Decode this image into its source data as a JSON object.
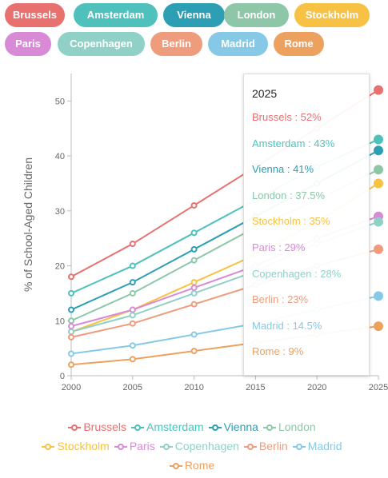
{
  "chart_data": {
    "type": "line",
    "title": "",
    "xlabel": "",
    "ylabel": "% of School-Aged Children",
    "x": [
      2000,
      2005,
      2010,
      2015,
      2020,
      2025
    ],
    "x_ticks": [
      "2000",
      "2005",
      "2010",
      "2015",
      "2020",
      "2025"
    ],
    "y_ticks": [
      "0",
      "10",
      "20",
      "30",
      "40",
      "50"
    ],
    "xlim": [
      2000,
      2025
    ],
    "ylim": [
      0,
      55
    ],
    "grid": false,
    "legend": "bottom",
    "series": [
      {
        "name": "Brussels",
        "color": "#e8706f",
        "values": [
          18,
          24,
          31,
          38,
          45,
          52
        ]
      },
      {
        "name": "Amsterdam",
        "color": "#4fc1bd",
        "values": [
          15,
          20,
          26,
          32,
          38,
          43
        ]
      },
      {
        "name": "Vienna",
        "color": "#2c9fb5",
        "values": [
          12,
          17,
          23,
          29,
          35,
          41
        ]
      },
      {
        "name": "London",
        "color": "#8dc7a8",
        "values": [
          10,
          15,
          21,
          27,
          32,
          37.5
        ]
      },
      {
        "name": "Stockholm",
        "color": "#f7c243",
        "values": [
          8,
          12,
          17,
          22,
          28,
          35
        ]
      },
      {
        "name": "Paris",
        "color": "#d88ad6",
        "values": [
          9,
          12,
          16,
          20,
          25,
          29
        ]
      },
      {
        "name": "Copenhagen",
        "color": "#8fd1c6",
        "values": [
          8,
          11,
          15,
          19,
          24,
          28
        ]
      },
      {
        "name": "Berlin",
        "color": "#ee9c7c",
        "values": [
          7,
          9.5,
          13,
          16.5,
          20,
          23
        ]
      },
      {
        "name": "Madrid",
        "color": "#86c9e6",
        "values": [
          4,
          5.5,
          7.5,
          9.5,
          12,
          14.5
        ]
      },
      {
        "name": "Rome",
        "color": "#eda15e",
        "values": [
          2,
          3,
          4.5,
          6,
          7.5,
          9
        ]
      }
    ],
    "tooltip": {
      "title": "2025",
      "rows": [
        "Brussels : 52%",
        "Amsterdam : 43%",
        "Vienna : 41%",
        "London : 37.5%",
        "Stockholm : 35%",
        "Paris : 29%",
        "Copenhagen : 28%",
        "Berlin : 23%",
        "Madrid : 14.5%",
        "Rome : 9%"
      ]
    }
  },
  "filter_chips": [
    "Brussels",
    "Amsterdam",
    "Vienna",
    "London",
    "Stockholm",
    "Paris",
    "Copenhagen",
    "Berlin",
    "Madrid",
    "Rome"
  ]
}
